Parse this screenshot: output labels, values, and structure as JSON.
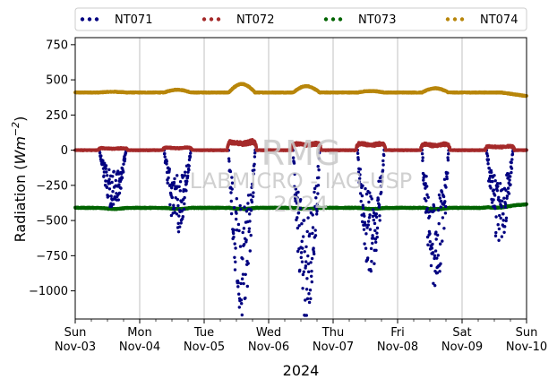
{
  "chart_data": {
    "type": "scatter",
    "xlabel": "2024",
    "ylabel_main": "Radiation (",
    "ylabel_unit_base": "Wm",
    "ylabel_unit_exp": "−2",
    "ylabel_close": ")",
    "ylim": [
      -1200,
      800
    ],
    "xlim_days": [
      0,
      7
    ],
    "grid": "vertical",
    "legend_placement": "top",
    "yticks": [
      {
        "value": 750,
        "label": "750"
      },
      {
        "value": 500,
        "label": "500"
      },
      {
        "value": 250,
        "label": "250"
      },
      {
        "value": 0,
        "label": "0"
      },
      {
        "value": -250,
        "label": "−250"
      },
      {
        "value": -500,
        "label": "−500"
      },
      {
        "value": -750,
        "label": "−750"
      },
      {
        "value": -1000,
        "label": "−1000"
      }
    ],
    "xticks": [
      {
        "day": 0,
        "weekday": "Sun",
        "date": "Nov-03"
      },
      {
        "day": 1,
        "weekday": "Mon",
        "date": "Nov-04"
      },
      {
        "day": 2,
        "weekday": "Tue",
        "date": "Nov-05"
      },
      {
        "day": 3,
        "weekday": "Wed",
        "date": "Nov-06"
      },
      {
        "day": 4,
        "weekday": "Thu",
        "date": "Nov-07"
      },
      {
        "day": 5,
        "weekday": "Fri",
        "date": "Nov-08"
      },
      {
        "day": 6,
        "weekday": "Sat",
        "date": "Nov-09"
      },
      {
        "day": 7,
        "weekday": "Sun",
        "date": "Nov-10"
      }
    ],
    "series": [
      {
        "name": "NT071",
        "color": "#000080",
        "daily_min": [
          -410,
          -570,
          -1170,
          -1200,
          -900,
          -1000,
          -660
        ],
        "night_level": 0
      },
      {
        "name": "NT072",
        "color": "#a52a2a",
        "daily_peak": [
          30,
          40,
          130,
          100,
          100,
          90,
          60
        ],
        "night_level": 0
      },
      {
        "name": "NT073",
        "color": "#006400",
        "baseline": -410,
        "end_level": -385
      },
      {
        "name": "NT074",
        "color": "#b8860b",
        "baseline": 410,
        "daily_peak": [
          415,
          430,
          470,
          455,
          420,
          440,
          410
        ],
        "end_level": 385
      }
    ],
    "watermark": {
      "line1": "RMG",
      "line2": "LABMICRO - IAG-USP",
      "line3": "2024"
    }
  }
}
